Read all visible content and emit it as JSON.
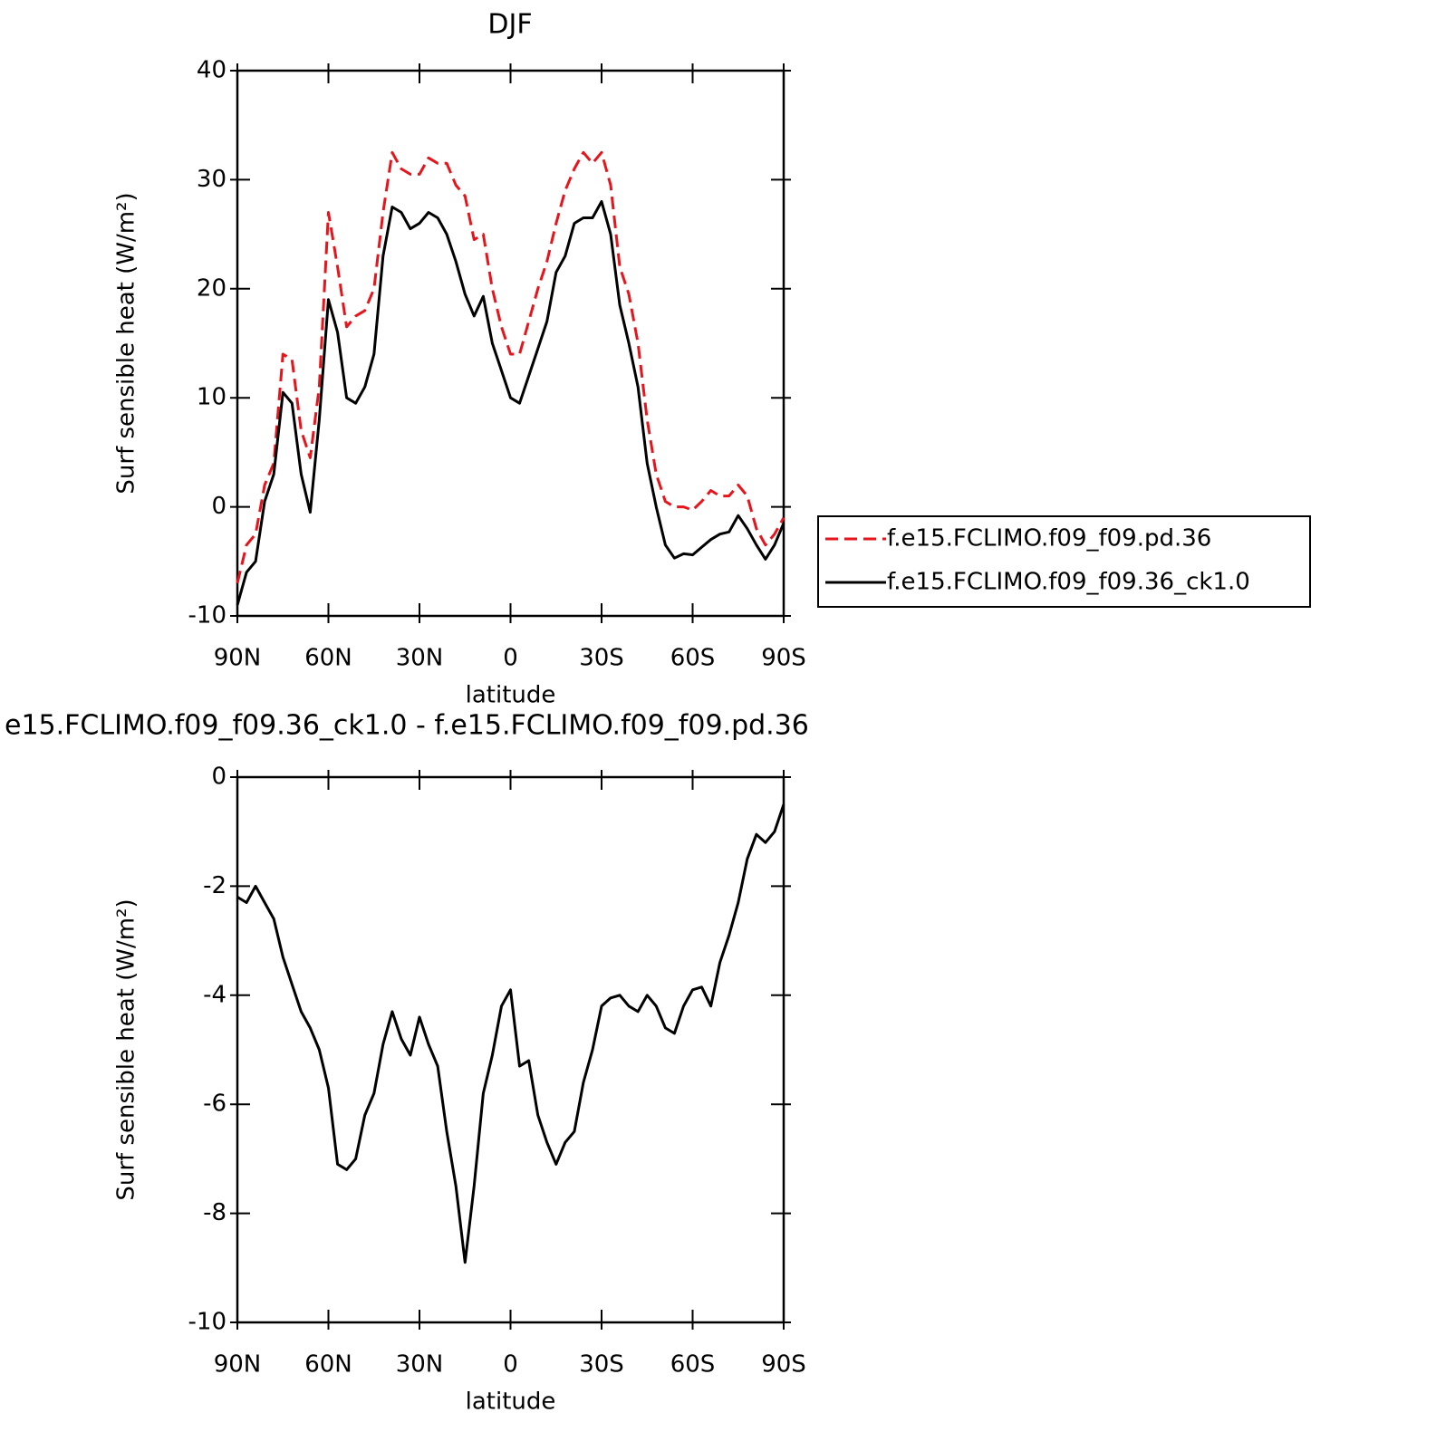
{
  "chart_data": [
    {
      "type": "line",
      "title": "DJF",
      "xlabel": "latitude",
      "ylabel": "Surf sensible heat (W/m²)",
      "x": [
        90,
        87,
        84,
        81,
        78,
        75,
        72,
        69,
        66,
        63,
        60,
        57,
        54,
        51,
        48,
        45,
        42,
        39,
        36,
        33,
        30,
        27,
        24,
        21,
        18,
        15,
        12,
        9,
        6,
        3,
        0,
        -3,
        -6,
        -9,
        -12,
        -15,
        -18,
        -21,
        -24,
        -27,
        -30,
        -33,
        -36,
        -39,
        -42,
        -45,
        -48,
        -51,
        -54,
        -57,
        -60,
        -63,
        -66,
        -69,
        -72,
        -75,
        -78,
        -81,
        -84,
        -87,
        -90
      ],
      "series": [
        {
          "name": "f.e15.FCLIMO.f09_f09.pd.36",
          "color": "#e8141c",
          "style": "dashed",
          "values": [
            -7,
            -3.5,
            -2.5,
            2,
            4,
            14,
            13.5,
            7,
            4.5,
            11,
            27,
            22,
            16.5,
            17.5,
            18,
            20,
            27,
            32.5,
            31,
            30.5,
            30.5,
            32,
            31.5,
            31.5,
            29.5,
            28.5,
            24.5,
            25,
            20,
            16.5,
            14,
            14,
            17,
            20,
            22.5,
            26,
            29,
            31,
            32.5,
            31.5,
            32.5,
            29.5,
            22,
            19.5,
            15,
            8,
            3,
            0.5,
            0,
            0,
            -0.3,
            0.5,
            1.5,
            1,
            1,
            2,
            1,
            -2,
            -3.5,
            -2.5,
            -1
          ]
        },
        {
          "name": "f.e15.FCLIMO.f09_f09.36_ck1.0",
          "color": "#000000",
          "style": "solid",
          "values": [
            -9,
            -6,
            -5,
            0.5,
            3,
            10.5,
            9.5,
            3,
            -0.5,
            8,
            19,
            16,
            10,
            9.5,
            11,
            14,
            23,
            27.5,
            27,
            25.5,
            26,
            27,
            26.5,
            25,
            22.5,
            19.5,
            17.5,
            19.3,
            15,
            12.5,
            10,
            9.5,
            12,
            14.5,
            17,
            21.5,
            23,
            26,
            26.5,
            26.5,
            28,
            25,
            18.5,
            15,
            11,
            4,
            0,
            -3.5,
            -4.7,
            -4.3,
            -4.4,
            -3.7,
            -3,
            -2.5,
            -2.3,
            -0.8,
            -2,
            -3.5,
            -4.8,
            -3.5,
            -1.5
          ]
        }
      ],
      "xlim": [
        90,
        -90
      ],
      "xticks": [
        {
          "value": 90,
          "label": "90N"
        },
        {
          "value": 60,
          "label": "60N"
        },
        {
          "value": 30,
          "label": "30N"
        },
        0,
        {
          "value": -30,
          "label": "30S"
        },
        {
          "value": -60,
          "label": "60S"
        },
        {
          "value": -90,
          "label": "90S"
        }
      ],
      "ylim": [
        -10,
        40
      ],
      "yticks": [
        -10,
        0,
        10,
        20,
        30,
        40
      ],
      "legend": "right"
    },
    {
      "type": "line",
      "title": "e15.FCLIMO.f09_f09.36_ck1.0 - f.e15.FCLIMO.f09_f09.pd.36",
      "xlabel": "latitude",
      "ylabel": "Surf sensible heat (W/m²)",
      "x": [
        90,
        87,
        84,
        81,
        78,
        75,
        72,
        69,
        66,
        63,
        60,
        57,
        54,
        51,
        48,
        45,
        42,
        39,
        36,
        33,
        30,
        27,
        24,
        21,
        18,
        15,
        12,
        9,
        6,
        3,
        0,
        -3,
        -6,
        -9,
        -12,
        -15,
        -18,
        -21,
        -24,
        -27,
        -30,
        -33,
        -36,
        -39,
        -42,
        -45,
        -48,
        -51,
        -54,
        -57,
        -60,
        -63,
        -66,
        -69,
        -72,
        -75,
        -78,
        -81,
        -84,
        -87,
        -90
      ],
      "series": [
        {
          "color": "#000000",
          "style": "solid",
          "values": [
            -2.2,
            -2.3,
            -2,
            -2.3,
            -2.6,
            -3.3,
            -3.8,
            -4.3,
            -4.6,
            -5,
            -5.7,
            -7.1,
            -7.2,
            -7,
            -6.2,
            -5.8,
            -4.9,
            -4.3,
            -4.8,
            -5.1,
            -4.4,
            -4.9,
            -5.3,
            -6.5,
            -7.5,
            -8.9,
            -7.5,
            -5.8,
            -5.1,
            -4.2,
            -3.9,
            -5.3,
            -5.2,
            -6.2,
            -6.7,
            -7.1,
            -6.7,
            -6.5,
            -5.6,
            -5,
            -4.2,
            -4.05,
            -4,
            -4.2,
            -4.3,
            -4,
            -4.2,
            -4.6,
            -4.7,
            -4.2,
            -3.9,
            -3.85,
            -4.2,
            -3.4,
            -2.9,
            -2.3,
            -1.5,
            -1.05,
            -1.2,
            -1,
            -0.5
          ]
        }
      ],
      "xlim": [
        90,
        -90
      ],
      "xticks": [
        {
          "value": 90,
          "label": "90N"
        },
        {
          "value": 60,
          "label": "60N"
        },
        {
          "value": 30,
          "label": "30N"
        },
        0,
        {
          "value": -30,
          "label": "30S"
        },
        {
          "value": -60,
          "label": "60S"
        },
        {
          "value": -90,
          "label": "90S"
        }
      ],
      "ylim": [
        -10,
        0
      ],
      "yticks": [
        -10,
        -8,
        -6,
        -4,
        -2,
        0
      ]
    }
  ]
}
